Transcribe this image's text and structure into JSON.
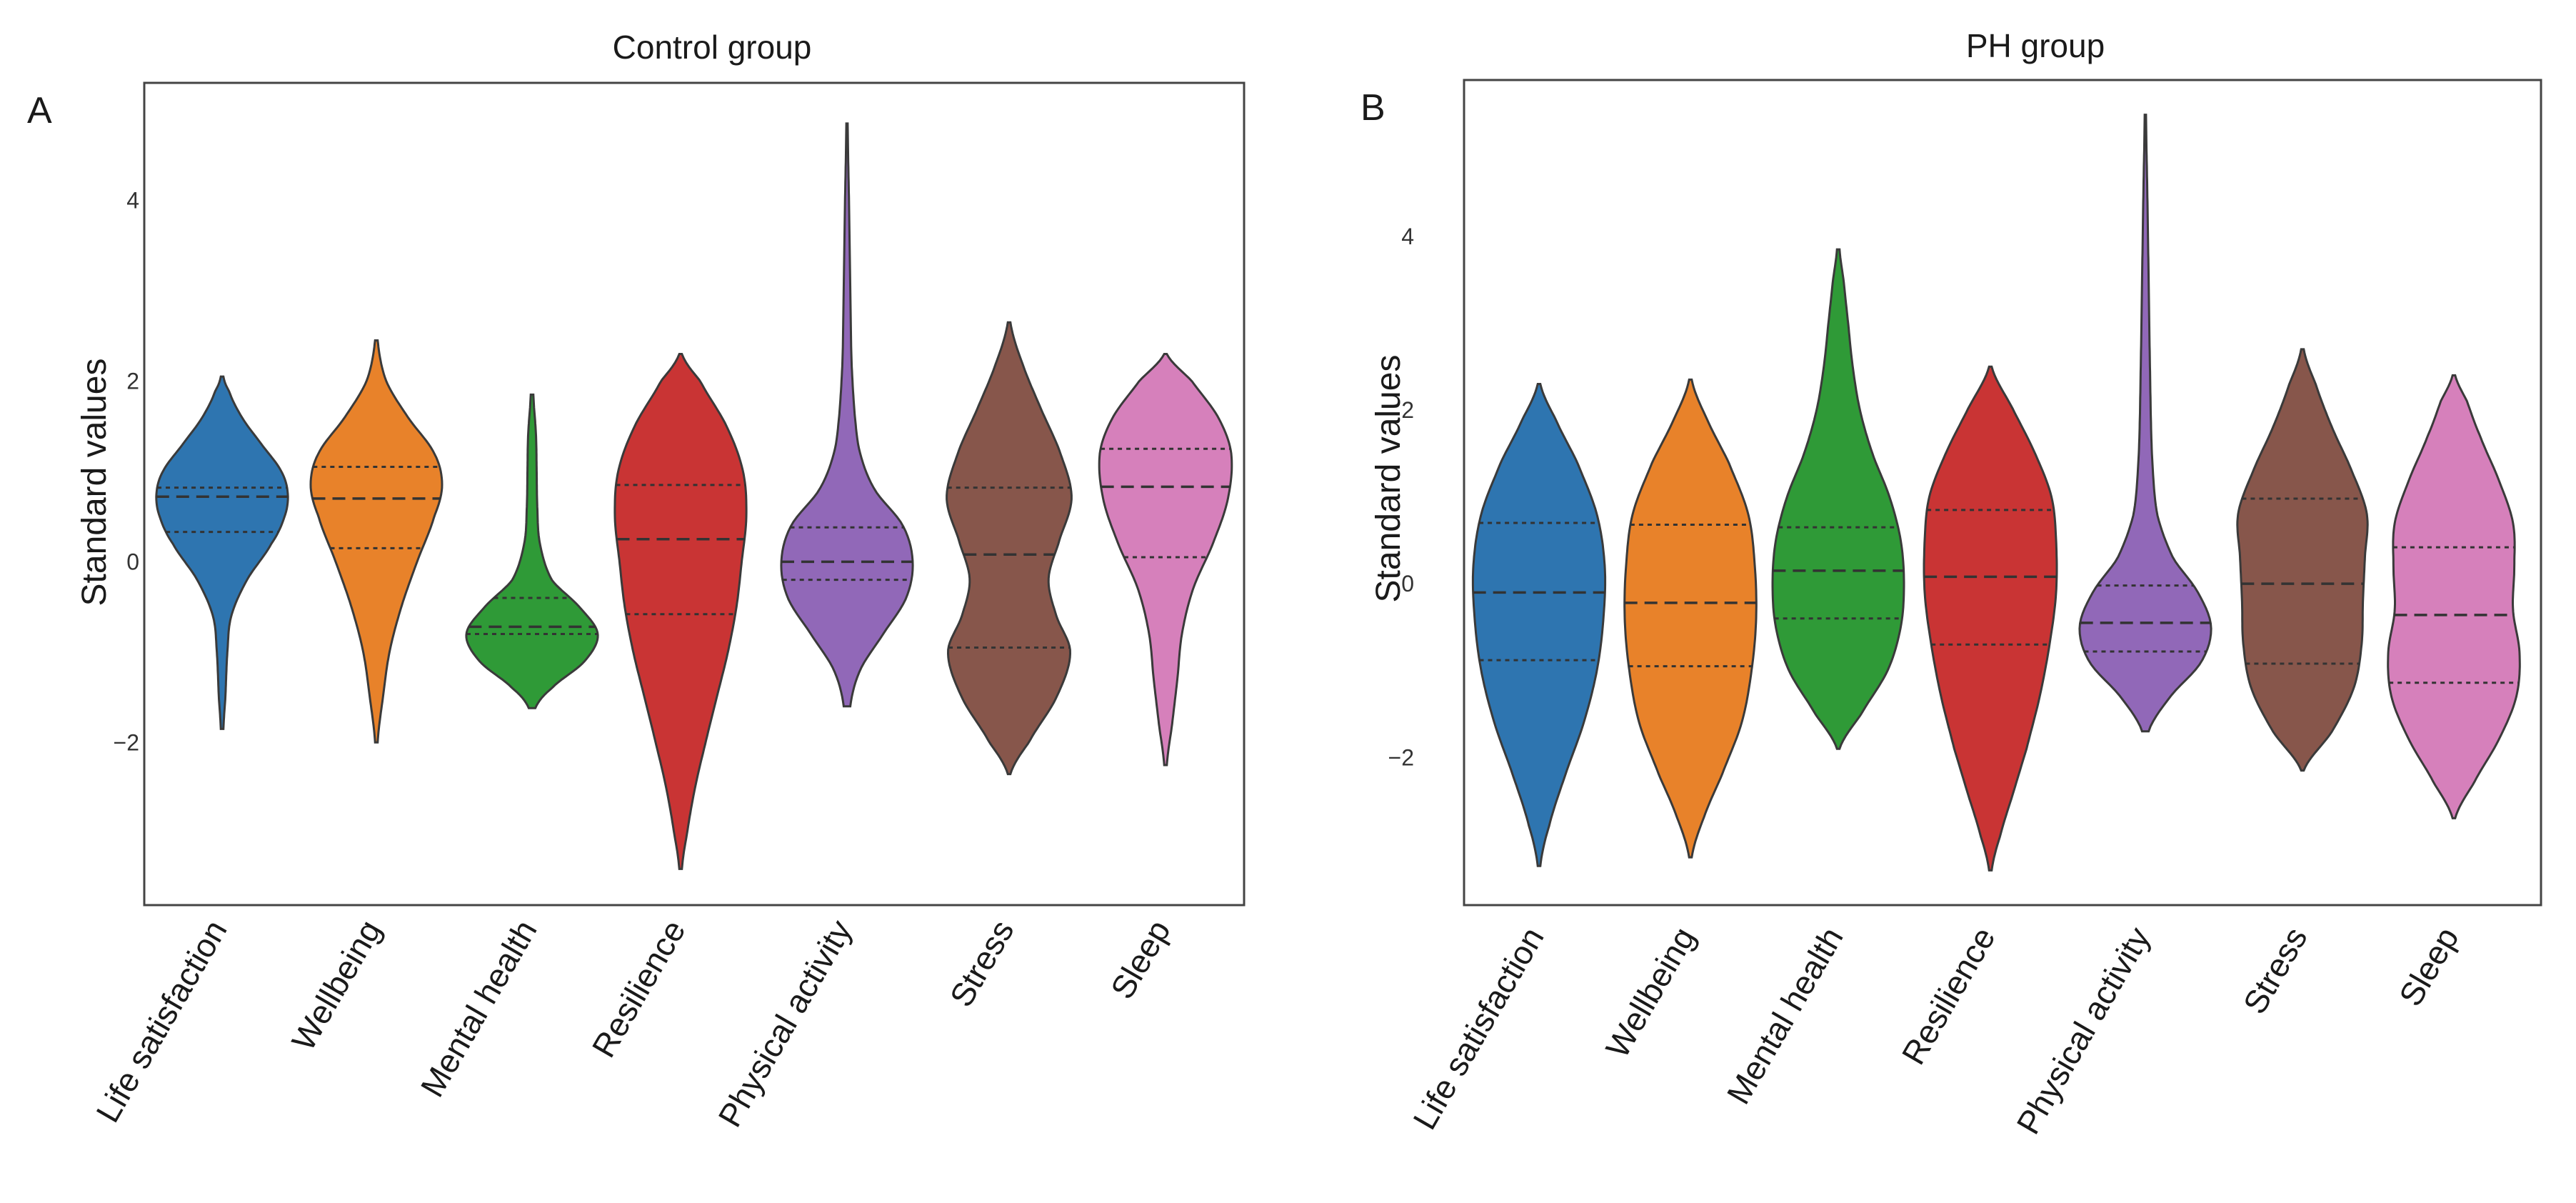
{
  "chart_data": [
    {
      "type": "violin",
      "panel_label": "A",
      "title": "Control group",
      "ylabel": "Standard values",
      "xlabel": "",
      "ylim": [
        -3.8,
        5.3
      ],
      "yticks": [
        4,
        2,
        0,
        -2
      ],
      "ytick_labels": [
        "4",
        "2",
        "0",
        "−2"
      ],
      "series": [
        {
          "name": "Life satisfaction",
          "color": "#2E75B0",
          "min": -1.85,
          "max": 2.05,
          "median": 0.72,
          "q1": 0.33,
          "q3": 0.82,
          "profile": [
            [
              -1.85,
              0.02
            ],
            [
              -1.5,
              0.05
            ],
            [
              -1.0,
              0.08
            ],
            [
              -0.6,
              0.14
            ],
            [
              -0.2,
              0.38
            ],
            [
              0.2,
              0.75
            ],
            [
              0.5,
              0.95
            ],
            [
              0.75,
              1.0
            ],
            [
              1.0,
              0.9
            ],
            [
              1.3,
              0.6
            ],
            [
              1.6,
              0.3
            ],
            [
              1.9,
              0.1
            ],
            [
              2.05,
              0.02
            ]
          ]
        },
        {
          "name": "Wellbeing",
          "color": "#E8822A",
          "min": -2.0,
          "max": 2.45,
          "median": 0.7,
          "q1": 0.15,
          "q3": 1.05,
          "profile": [
            [
              -2.0,
              0.02
            ],
            [
              -1.5,
              0.1
            ],
            [
              -1.0,
              0.2
            ],
            [
              -0.5,
              0.38
            ],
            [
              0.0,
              0.62
            ],
            [
              0.5,
              0.88
            ],
            [
              0.85,
              1.0
            ],
            [
              1.2,
              0.88
            ],
            [
              1.6,
              0.48
            ],
            [
              2.0,
              0.15
            ],
            [
              2.45,
              0.02
            ]
          ]
        },
        {
          "name": "Mental health",
          "color": "#2F9A37",
          "min": -1.62,
          "max": 1.85,
          "median": -0.72,
          "q1": -0.8,
          "q3": -0.4,
          "profile": [
            [
              -1.62,
              0.05
            ],
            [
              -1.4,
              0.3
            ],
            [
              -1.1,
              0.8
            ],
            [
              -0.8,
              1.0
            ],
            [
              -0.5,
              0.72
            ],
            [
              -0.2,
              0.3
            ],
            [
              0.2,
              0.12
            ],
            [
              0.6,
              0.08
            ],
            [
              1.0,
              0.07
            ],
            [
              1.4,
              0.06
            ],
            [
              1.85,
              0.02
            ]
          ]
        },
        {
          "name": "Resilience",
          "color": "#C93434",
          "min": -3.4,
          "max": 2.3,
          "median": 0.25,
          "q1": -0.58,
          "q3": 0.85,
          "profile": [
            [
              -3.4,
              0.02
            ],
            [
              -3.0,
              0.1
            ],
            [
              -2.5,
              0.22
            ],
            [
              -2.0,
              0.38
            ],
            [
              -1.5,
              0.55
            ],
            [
              -1.0,
              0.72
            ],
            [
              -0.5,
              0.85
            ],
            [
              0.0,
              0.93
            ],
            [
              0.5,
              1.0
            ],
            [
              1.0,
              0.95
            ],
            [
              1.5,
              0.7
            ],
            [
              2.0,
              0.3
            ],
            [
              2.3,
              0.02
            ]
          ]
        },
        {
          "name": "Physical activity",
          "color": "#9168B8",
          "min": -1.6,
          "max": 4.85,
          "median": 0.0,
          "q1": -0.2,
          "q3": 0.38,
          "profile": [
            [
              -1.6,
              0.05
            ],
            [
              -1.2,
              0.2
            ],
            [
              -0.8,
              0.55
            ],
            [
              -0.4,
              0.9
            ],
            [
              0.0,
              1.0
            ],
            [
              0.4,
              0.85
            ],
            [
              0.8,
              0.42
            ],
            [
              1.2,
              0.2
            ],
            [
              1.6,
              0.12
            ],
            [
              2.2,
              0.07
            ],
            [
              3.0,
              0.05
            ],
            [
              4.0,
              0.03
            ],
            [
              4.85,
              0.01
            ]
          ]
        },
        {
          "name": "Stress",
          "color": "#87564B",
          "min": -2.35,
          "max": 2.65,
          "median": 0.08,
          "q1": -0.95,
          "q3": 0.82,
          "profile": [
            [
              -2.35,
              0.02
            ],
            [
              -2.0,
              0.3
            ],
            [
              -1.5,
              0.72
            ],
            [
              -1.0,
              0.93
            ],
            [
              -0.6,
              0.72
            ],
            [
              -0.2,
              0.6
            ],
            [
              0.2,
              0.75
            ],
            [
              0.7,
              0.95
            ],
            [
              1.2,
              0.78
            ],
            [
              1.7,
              0.48
            ],
            [
              2.2,
              0.2
            ],
            [
              2.65,
              0.02
            ]
          ]
        },
        {
          "name": "Sleep",
          "color": "#D680BB",
          "min": -2.25,
          "max": 2.3,
          "median": 0.83,
          "q1": 0.05,
          "q3": 1.25,
          "profile": [
            [
              -2.25,
              0.02
            ],
            [
              -1.8,
              0.1
            ],
            [
              -1.3,
              0.18
            ],
            [
              -0.8,
              0.25
            ],
            [
              -0.3,
              0.42
            ],
            [
              0.2,
              0.72
            ],
            [
              0.7,
              0.95
            ],
            [
              1.2,
              1.0
            ],
            [
              1.6,
              0.8
            ],
            [
              2.0,
              0.4
            ],
            [
              2.3,
              0.02
            ]
          ]
        }
      ]
    },
    {
      "type": "violin",
      "panel_label": "B",
      "title": "PH group",
      "ylabel": "Standard values",
      "xlabel": "",
      "ylim": [
        -3.7,
        5.8
      ],
      "yticks": [
        4,
        2,
        0,
        -2
      ],
      "ytick_labels": [
        "4",
        "2",
        "0",
        "−2"
      ],
      "series": [
        {
          "name": "Life satisfaction",
          "color": "#2E75B0",
          "min": -3.25,
          "max": 2.3,
          "median": -0.1,
          "q1": -0.88,
          "q3": 0.7,
          "profile": [
            [
              -3.25,
              0.02
            ],
            [
              -2.8,
              0.15
            ],
            [
              -2.2,
              0.4
            ],
            [
              -1.6,
              0.68
            ],
            [
              -1.0,
              0.88
            ],
            [
              -0.4,
              0.98
            ],
            [
              0.2,
              1.0
            ],
            [
              0.8,
              0.88
            ],
            [
              1.4,
              0.58
            ],
            [
              1.9,
              0.25
            ],
            [
              2.3,
              0.02
            ]
          ]
        },
        {
          "name": "Wellbeing",
          "color": "#E8822A",
          "min": -3.15,
          "max": 2.35,
          "median": -0.22,
          "q1": -0.95,
          "q3": 0.68,
          "profile": [
            [
              -3.15,
              0.02
            ],
            [
              -2.7,
              0.2
            ],
            [
              -2.2,
              0.48
            ],
            [
              -1.6,
              0.78
            ],
            [
              -1.0,
              0.93
            ],
            [
              -0.4,
              1.0
            ],
            [
              0.2,
              0.98
            ],
            [
              0.8,
              0.88
            ],
            [
              1.4,
              0.58
            ],
            [
              1.9,
              0.25
            ],
            [
              2.35,
              0.02
            ]
          ]
        },
        {
          "name": "Mental health",
          "color": "#2F9A37",
          "min": -1.9,
          "max": 3.85,
          "median": 0.15,
          "q1": -0.4,
          "q3": 0.65,
          "profile": [
            [
              -1.9,
              0.02
            ],
            [
              -1.5,
              0.35
            ],
            [
              -1.0,
              0.75
            ],
            [
              -0.5,
              0.95
            ],
            [
              0.0,
              1.0
            ],
            [
              0.5,
              0.95
            ],
            [
              1.0,
              0.78
            ],
            [
              1.5,
              0.52
            ],
            [
              2.0,
              0.33
            ],
            [
              2.5,
              0.22
            ],
            [
              3.0,
              0.15
            ],
            [
              3.5,
              0.08
            ],
            [
              3.85,
              0.02
            ]
          ]
        },
        {
          "name": "Resilience",
          "color": "#C93434",
          "min": -3.3,
          "max": 2.5,
          "median": 0.08,
          "q1": -0.7,
          "q3": 0.85,
          "profile": [
            [
              -3.3,
              0.02
            ],
            [
              -2.9,
              0.15
            ],
            [
              -2.4,
              0.35
            ],
            [
              -1.9,
              0.55
            ],
            [
              -1.3,
              0.75
            ],
            [
              -0.7,
              0.9
            ],
            [
              -0.1,
              1.0
            ],
            [
              0.5,
              1.0
            ],
            [
              1.0,
              0.93
            ],
            [
              1.5,
              0.68
            ],
            [
              2.0,
              0.35
            ],
            [
              2.5,
              0.02
            ]
          ]
        },
        {
          "name": "Physical activity",
          "color": "#9168B8",
          "min": -1.7,
          "max": 5.4,
          "median": -0.45,
          "q1": -0.78,
          "q3": -0.02,
          "profile": [
            [
              -1.7,
              0.05
            ],
            [
              -1.3,
              0.38
            ],
            [
              -0.9,
              0.85
            ],
            [
              -0.5,
              1.0
            ],
            [
              -0.1,
              0.8
            ],
            [
              0.3,
              0.42
            ],
            [
              0.8,
              0.18
            ],
            [
              1.5,
              0.1
            ],
            [
              2.5,
              0.07
            ],
            [
              3.5,
              0.05
            ],
            [
              4.5,
              0.03
            ],
            [
              5.4,
              0.01
            ]
          ]
        },
        {
          "name": "Stress",
          "color": "#87564B",
          "min": -2.15,
          "max": 2.7,
          "median": 0.0,
          "q1": -0.92,
          "q3": 0.98,
          "profile": [
            [
              -2.15,
              0.02
            ],
            [
              -1.7,
              0.45
            ],
            [
              -1.2,
              0.78
            ],
            [
              -0.7,
              0.9
            ],
            [
              -0.2,
              0.92
            ],
            [
              0.3,
              0.95
            ],
            [
              0.8,
              0.98
            ],
            [
              1.3,
              0.75
            ],
            [
              1.8,
              0.45
            ],
            [
              2.3,
              0.2
            ],
            [
              2.7,
              0.02
            ]
          ]
        },
        {
          "name": "Sleep",
          "color": "#D680BB",
          "min": -2.7,
          "max": 2.4,
          "median": -0.36,
          "q1": -1.14,
          "q3": 0.42,
          "profile": [
            [
              -2.7,
              0.02
            ],
            [
              -2.3,
              0.3
            ],
            [
              -1.8,
              0.68
            ],
            [
              -1.3,
              0.95
            ],
            [
              -0.8,
              1.0
            ],
            [
              -0.3,
              0.9
            ],
            [
              0.2,
              0.92
            ],
            [
              0.7,
              0.9
            ],
            [
              1.2,
              0.68
            ],
            [
              1.7,
              0.4
            ],
            [
              2.1,
              0.2
            ],
            [
              2.4,
              0.02
            ]
          ]
        }
      ]
    }
  ]
}
